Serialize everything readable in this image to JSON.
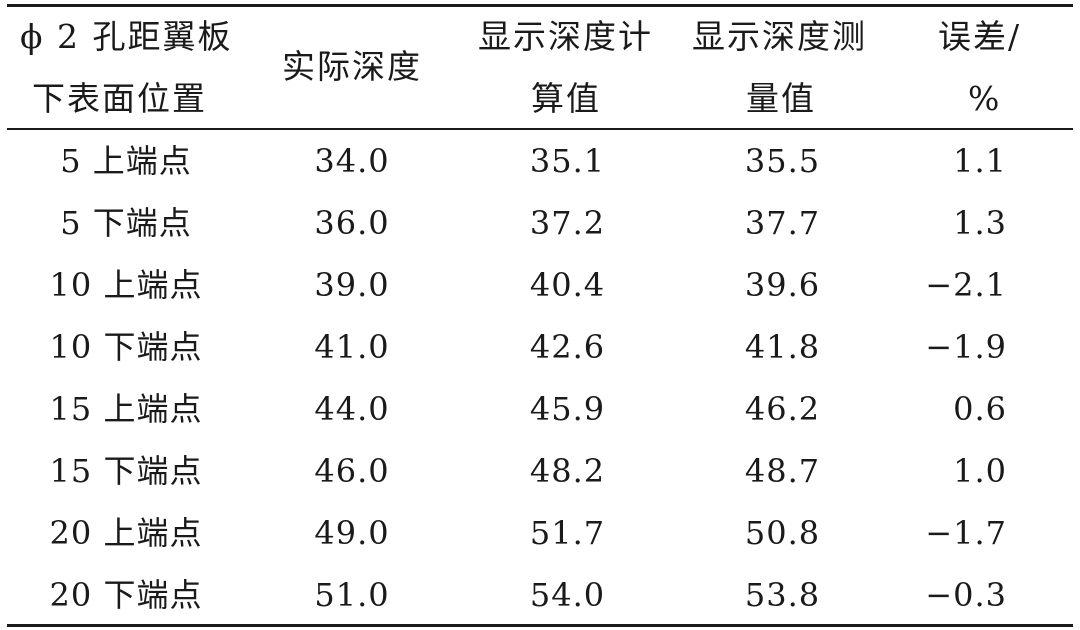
{
  "table": {
    "headers": {
      "position": [
        "ϕ 2 孔距翼板",
        "下表面位置"
      ],
      "actual": "实际深度",
      "calc": [
        "显示深度计",
        "算值"
      ],
      "meas": [
        "显示深度测",
        "量值"
      ],
      "error": [
        "误差/",
        "%"
      ]
    },
    "rows": [
      {
        "position": "5 上端点",
        "actual": "34.0",
        "calc": "35.1",
        "meas": "35.5",
        "error": "1.1"
      },
      {
        "position": "5 下端点",
        "actual": "36.0",
        "calc": "37.2",
        "meas": "37.7",
        "error": "1.3"
      },
      {
        "position": "10 上端点",
        "actual": "39.0",
        "calc": "40.4",
        "meas": "39.6",
        "error": "−2.1"
      },
      {
        "position": "10 下端点",
        "actual": "41.0",
        "calc": "42.6",
        "meas": "41.8",
        "error": "−1.9"
      },
      {
        "position": "15 上端点",
        "actual": "44.0",
        "calc": "45.9",
        "meas": "46.2",
        "error": "0.6"
      },
      {
        "position": "15 下端点",
        "actual": "46.0",
        "calc": "48.2",
        "meas": "48.7",
        "error": "1.0"
      },
      {
        "position": "20 上端点",
        "actual": "49.0",
        "calc": "51.7",
        "meas": "50.8",
        "error": "−1.7"
      },
      {
        "position": "20 下端点",
        "actual": "51.0",
        "calc": "54.0",
        "meas": "53.8",
        "error": "−0.3"
      }
    ]
  }
}
